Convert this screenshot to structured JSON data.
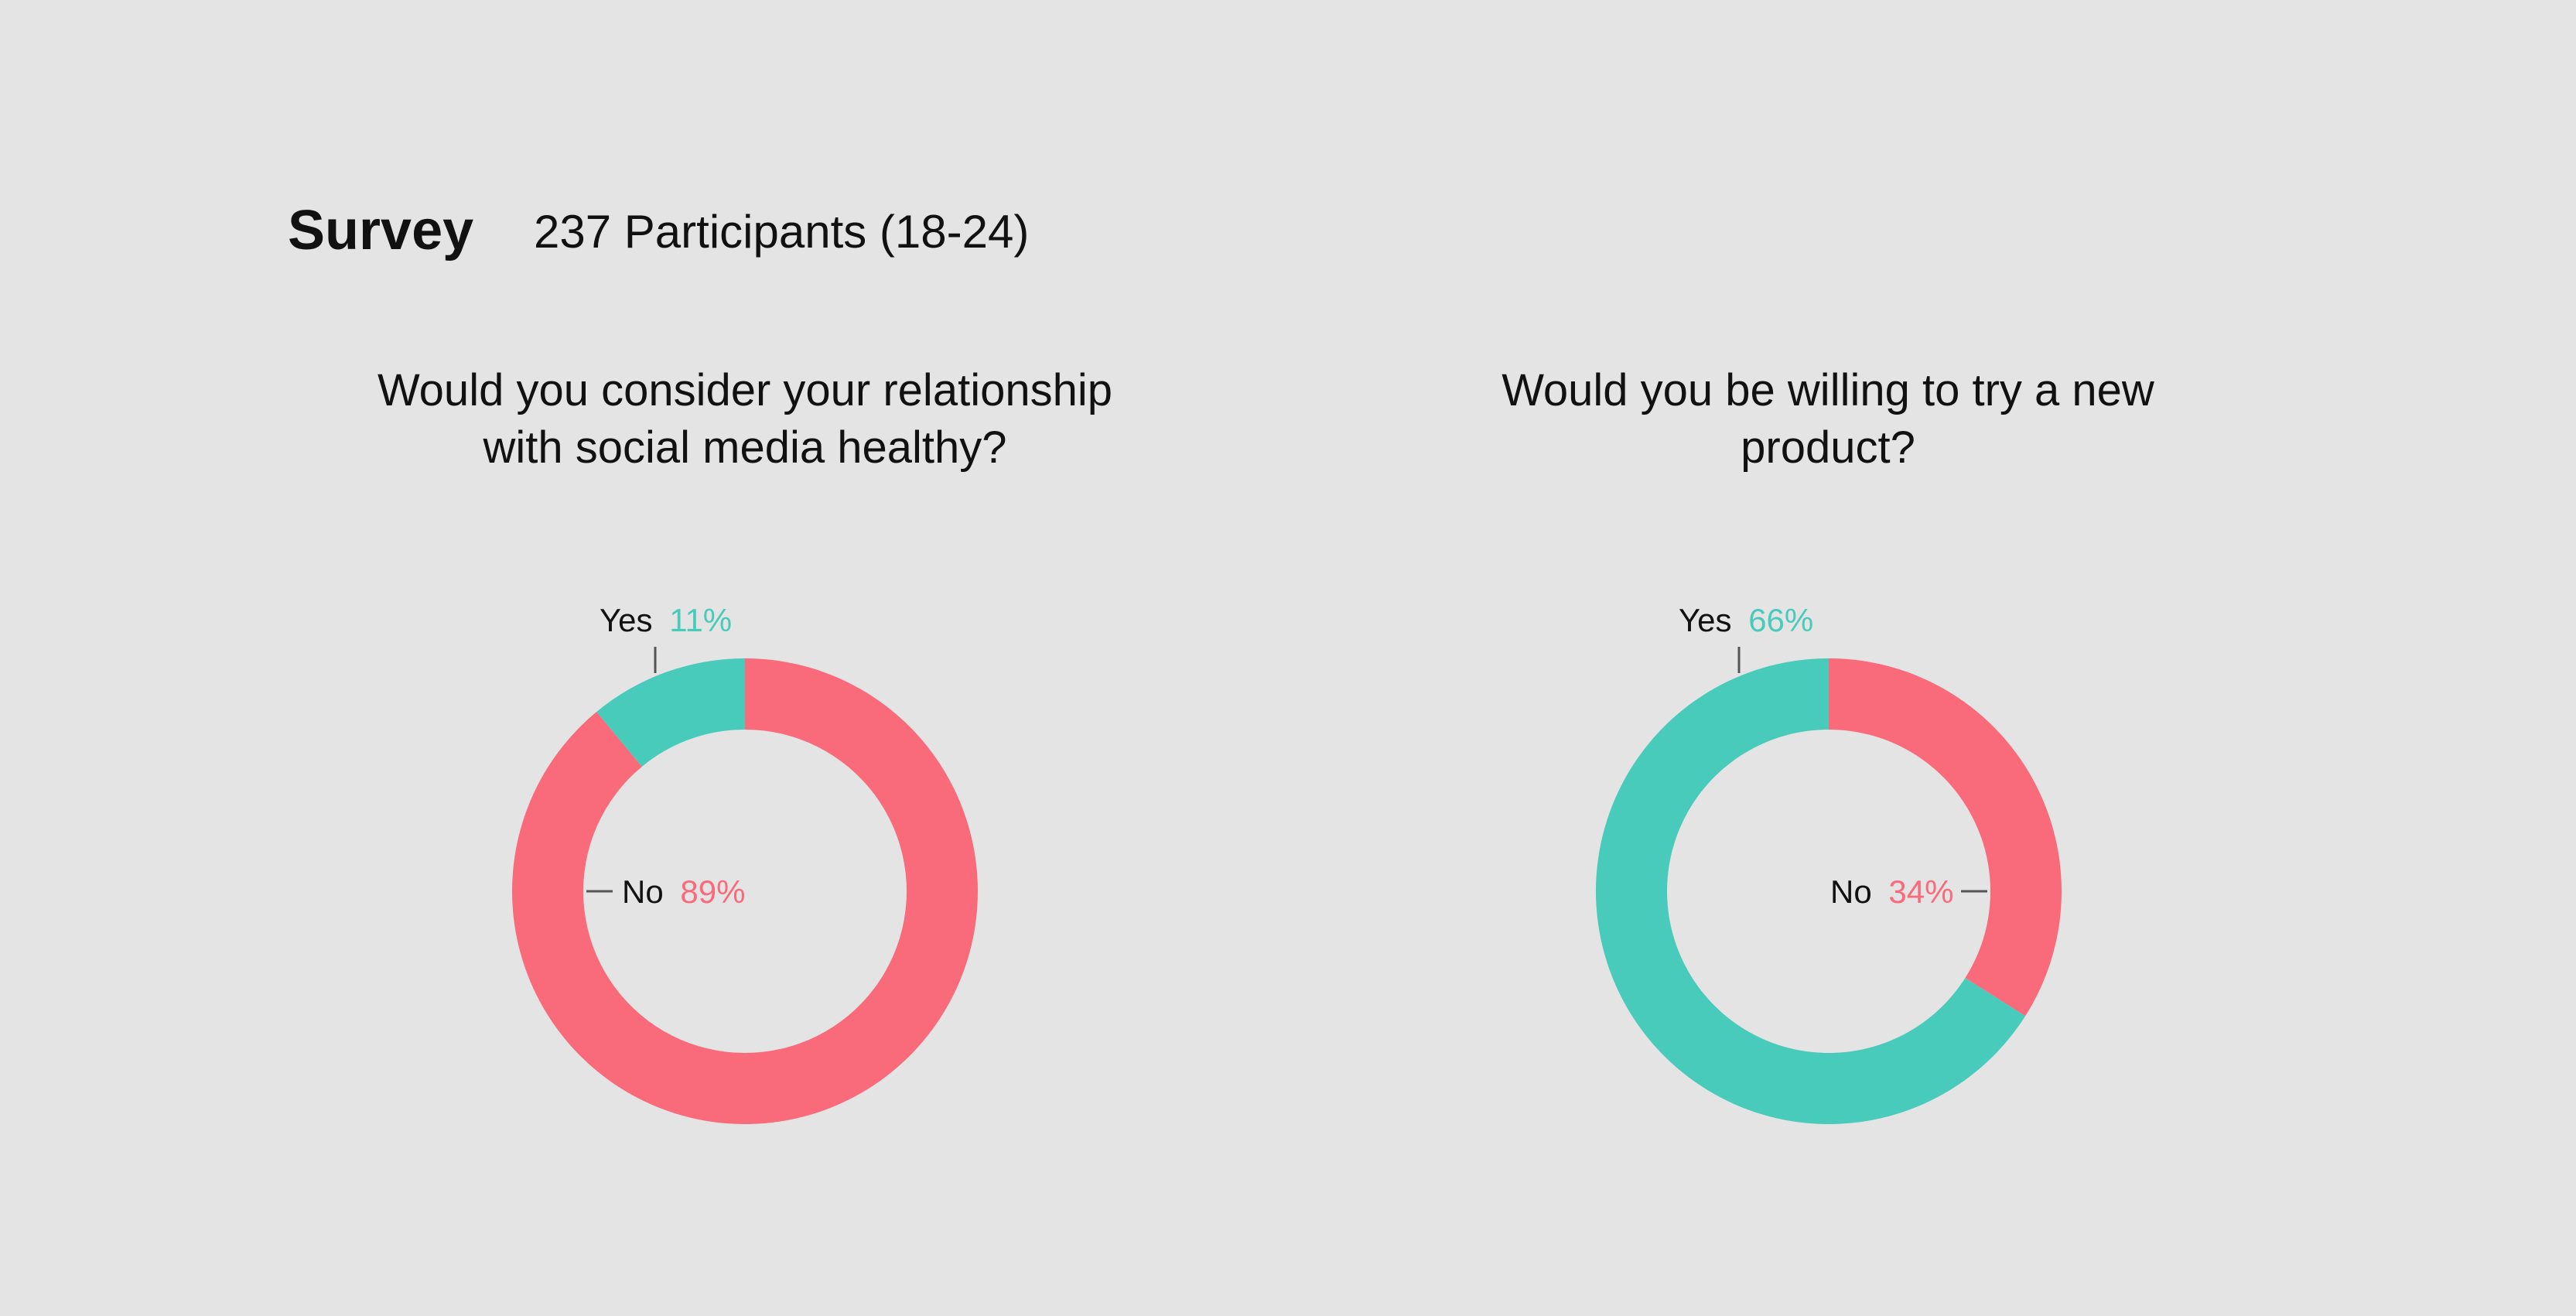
{
  "header": {
    "title": "Survey",
    "subtitle": "237 Participants (18-24)"
  },
  "colors": {
    "background": "#e4e4e4",
    "yes": "#48cbbb",
    "no": "#f96b7a",
    "text": "#111111",
    "leader": "#555555"
  },
  "chart_data": [
    {
      "type": "pie",
      "style": "donut",
      "title_lines": [
        "Would you consider your relationship",
        "with social media healthy?"
      ],
      "slices": [
        {
          "label": "Yes",
          "value": 11,
          "display": "11%",
          "color": "#48cbbb"
        },
        {
          "label": "No",
          "value": 89,
          "display": "89%",
          "color": "#f96b7a"
        }
      ]
    },
    {
      "type": "pie",
      "style": "donut",
      "title_lines": [
        "Would you be willing to try a new",
        "product?"
      ],
      "slices": [
        {
          "label": "Yes",
          "value": 66,
          "display": "66%",
          "color": "#48cbbb"
        },
        {
          "label": "No",
          "value": 34,
          "display": "34%",
          "color": "#f96b7a"
        }
      ]
    }
  ]
}
